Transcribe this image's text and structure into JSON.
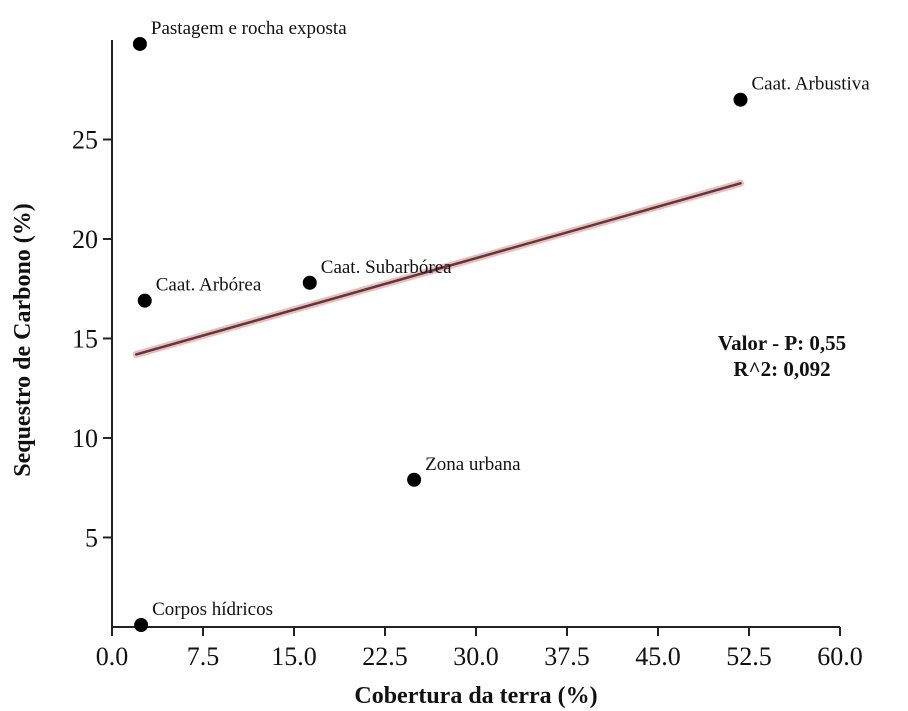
{
  "chart_data": {
    "type": "scatter",
    "xlabel": "Cobertura da terra (%)",
    "ylabel": "Sequestro de Carbono (%)",
    "xlim": [
      0,
      60
    ],
    "ylim": [
      0.5,
      30
    ],
    "x_ticks": [
      "0.0",
      "7.5",
      "15.0",
      "22.5",
      "30.0",
      "37.5",
      "45.0",
      "52.5",
      "60.0"
    ],
    "x_tick_values": [
      0,
      7.5,
      15,
      22.5,
      30,
      37.5,
      45,
      52.5,
      60
    ],
    "y_ticks": [
      "5",
      "10",
      "15",
      "20",
      "25"
    ],
    "y_tick_values": [
      5,
      10,
      15,
      20,
      25
    ],
    "grid": false,
    "points": [
      {
        "label": "Pastagem e rocha exposta",
        "x": 2.3,
        "y": 29.8
      },
      {
        "label": "Caat. Arbustiva",
        "x": 51.8,
        "y": 27.0
      },
      {
        "label": "Caat. Subarbórea",
        "x": 16.3,
        "y": 17.8
      },
      {
        "label": "Caat. Arbórea",
        "x": 2.7,
        "y": 16.9
      },
      {
        "label": "Zona urbana",
        "x": 24.9,
        "y": 7.9
      },
      {
        "label": "Corpos hídricos",
        "x": 2.4,
        "y": 0.6
      }
    ],
    "trendline": {
      "x": [
        2.0,
        51.8
      ],
      "y": [
        14.2,
        22.8
      ],
      "color": "#5a3a3a",
      "glow_color": "#e8a0a0"
    },
    "annotations": [
      "Valor - P: 0,55",
      "R^2: 0,092"
    ]
  }
}
